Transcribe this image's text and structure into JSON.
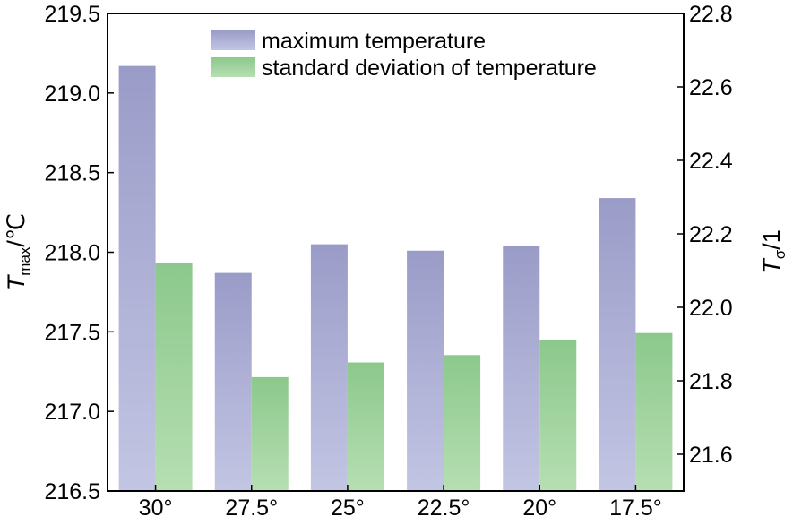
{
  "chart_data": {
    "type": "bar",
    "categories": [
      "30°",
      "27.5°",
      "25°",
      "22.5°",
      "20°",
      "17.5°"
    ],
    "series": [
      {
        "name": "maximum temperature",
        "axis": "left",
        "color": "#9a9cc8",
        "values": [
          219.17,
          217.87,
          218.05,
          218.01,
          218.04,
          218.34
        ]
      },
      {
        "name": "standard deviation of temperature",
        "axis": "right",
        "color": "#8fca8f",
        "values": [
          22.12,
          21.81,
          21.85,
          21.87,
          21.91,
          21.93
        ]
      }
    ],
    "y_left": {
      "label_main": "T",
      "label_sub": "max",
      "label_unit": "/℃",
      "ylim": [
        216.5,
        219.5
      ],
      "ticks": [
        "216.5",
        "217.0",
        "217.5",
        "218.0",
        "218.5",
        "219.0",
        "219.5"
      ]
    },
    "y_right": {
      "label_main": "T",
      "label_sub": "σ",
      "label_unit": "/1",
      "ylim": [
        21.5,
        22.8
      ],
      "ticks": [
        "21.6",
        "21.8",
        "22.0",
        "22.2",
        "22.4",
        "22.6",
        "22.8"
      ]
    },
    "legend_position": "top-center",
    "grid": false
  }
}
